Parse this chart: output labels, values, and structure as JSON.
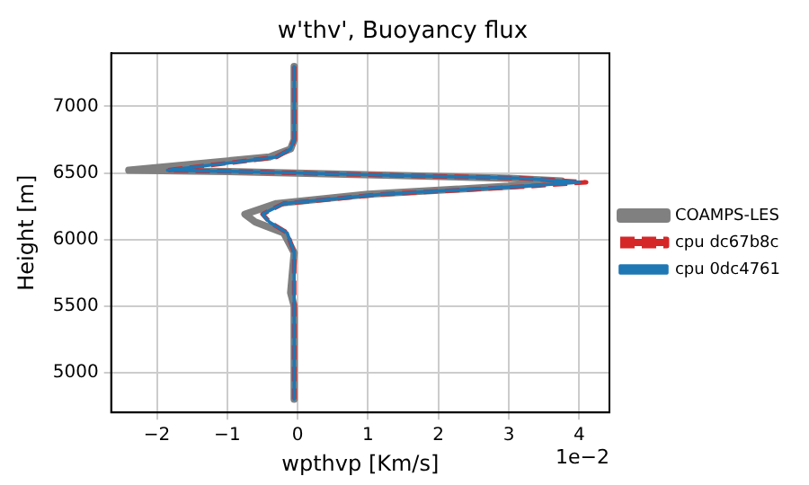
{
  "chart_data": {
    "type": "line",
    "title": "w'thv', Buoyancy flux",
    "xlabel": "wpthvp [Km/s]",
    "ylabel": "Height [m]",
    "annotations": [
      "1e−2"
    ],
    "xlim": [
      -2.65,
      4.43
    ],
    "xticks": [
      {
        "value": -2,
        "label": "−2"
      },
      {
        "value": -1,
        "label": "−1"
      },
      0,
      1,
      2,
      3,
      4
    ],
    "ylim": [
      4700,
      7400
    ],
    "yticks": [
      5000,
      5500,
      6000,
      6500,
      7000
    ],
    "grid": true,
    "legend": "right",
    "marker": "none",
    "series": [
      {
        "name": "COAMPS-LES",
        "color": "#808080",
        "line_style": "solid",
        "x": [
          -0.05,
          -0.05,
          -0.1,
          -0.4,
          -1.2,
          -2.4,
          -1.0,
          1.5,
          3.0,
          3.75,
          3.0,
          1.0,
          -0.3,
          -0.75,
          -0.6,
          -0.2,
          -0.05,
          -0.1,
          -0.05,
          -0.05
        ],
        "values": [
          7300,
          6750,
          6680,
          6620,
          6580,
          6520,
          6510,
          6480,
          6460,
          6440,
          6400,
          6340,
          6270,
          6190,
          6130,
          6050,
          5900,
          5600,
          5500,
          4800
        ]
      },
      {
        "name": "cpu dc67b8c",
        "color": "#d62728",
        "line_style": "dashed",
        "x": [
          -0.05,
          -0.05,
          -0.1,
          -0.3,
          -0.9,
          -1.85,
          -0.8,
          1.5,
          3.2,
          4.1,
          3.3,
          1.2,
          -0.2,
          -0.5,
          -0.4,
          -0.15,
          -0.05,
          -0.05
        ],
        "values": [
          7300,
          6750,
          6680,
          6620,
          6580,
          6520,
          6510,
          6480,
          6460,
          6430,
          6400,
          6340,
          6270,
          6190,
          6130,
          6050,
          5900,
          4800
        ]
      },
      {
        "name": "cpu 0dc4761",
        "color": "#1f77b4",
        "line_style": "solid",
        "x": [
          -0.05,
          -0.05,
          -0.1,
          -0.3,
          -0.9,
          -1.85,
          -0.8,
          1.5,
          3.2,
          4.0,
          3.2,
          1.2,
          -0.2,
          -0.5,
          -0.4,
          -0.15,
          -0.05,
          -0.05
        ],
        "values": [
          7300,
          6750,
          6680,
          6620,
          6580,
          6520,
          6510,
          6480,
          6460,
          6430,
          6400,
          6340,
          6270,
          6190,
          6130,
          6050,
          5900,
          4800
        ]
      }
    ]
  }
}
